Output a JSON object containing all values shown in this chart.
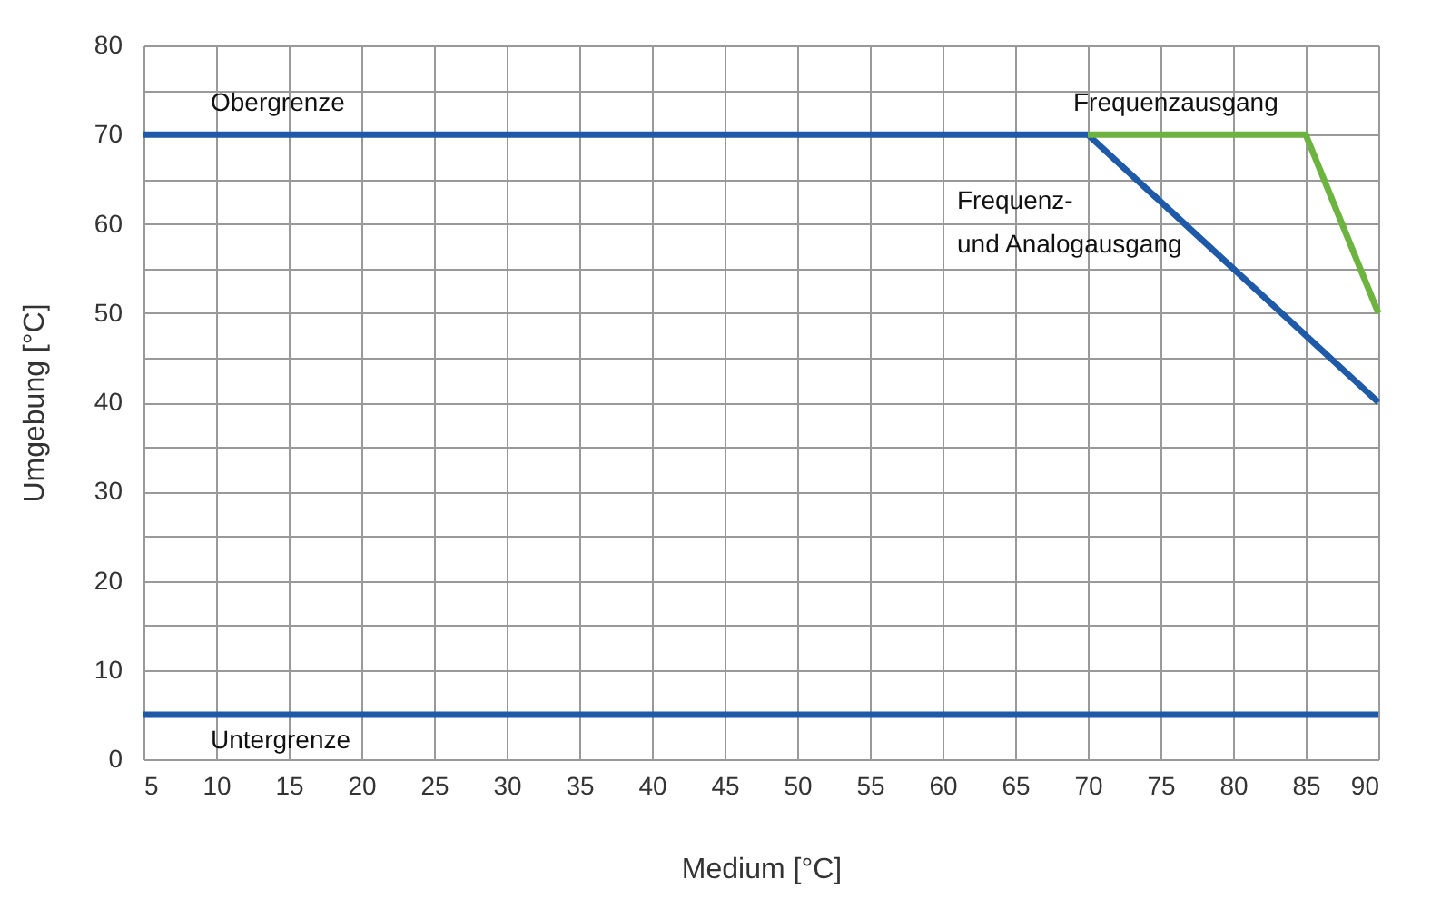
{
  "chart_data": {
    "type": "line",
    "xlabel": "Medium [°C]",
    "ylabel": "Umgebung [°C]",
    "series": [
      {
        "color": "#1f5aa8",
        "x": [
          5,
          70,
          90
        ],
        "values": [
          70,
          70,
          40
        ]
      },
      {
        "color": "#6cb33f",
        "x": [
          70,
          85,
          90
        ],
        "values": [
          70,
          70,
          50
        ]
      },
      {
        "color": "#1f5aa8",
        "x": [
          5,
          90
        ],
        "values": [
          5,
          5
        ]
      }
    ],
    "xlim": [
      5,
      90
    ],
    "xticks": [
      5,
      10,
      15,
      20,
      25,
      30,
      35,
      40,
      45,
      50,
      55,
      60,
      65,
      70,
      75,
      80,
      85,
      90
    ],
    "ylim": [
      0,
      80
    ],
    "yticks": [
      0,
      {
        "value": 5,
        "label": null
      },
      10,
      {
        "value": 15,
        "label": null
      },
      20,
      {
        "value": 25,
        "label": null
      },
      30,
      {
        "value": 35,
        "label": null
      },
      40,
      {
        "value": 45,
        "label": null
      },
      50,
      {
        "value": 55,
        "label": null
      },
      60,
      {
        "value": 65,
        "label": null
      },
      70,
      {
        "value": 75,
        "label": null
      },
      80
    ],
    "grid": true,
    "marker": "none",
    "line_style": "solid",
    "annotations": [
      "Obergrenze",
      "Frequenzausgang",
      "Frequenz-\nund Analogausgang",
      "Untergrenze"
    ]
  }
}
